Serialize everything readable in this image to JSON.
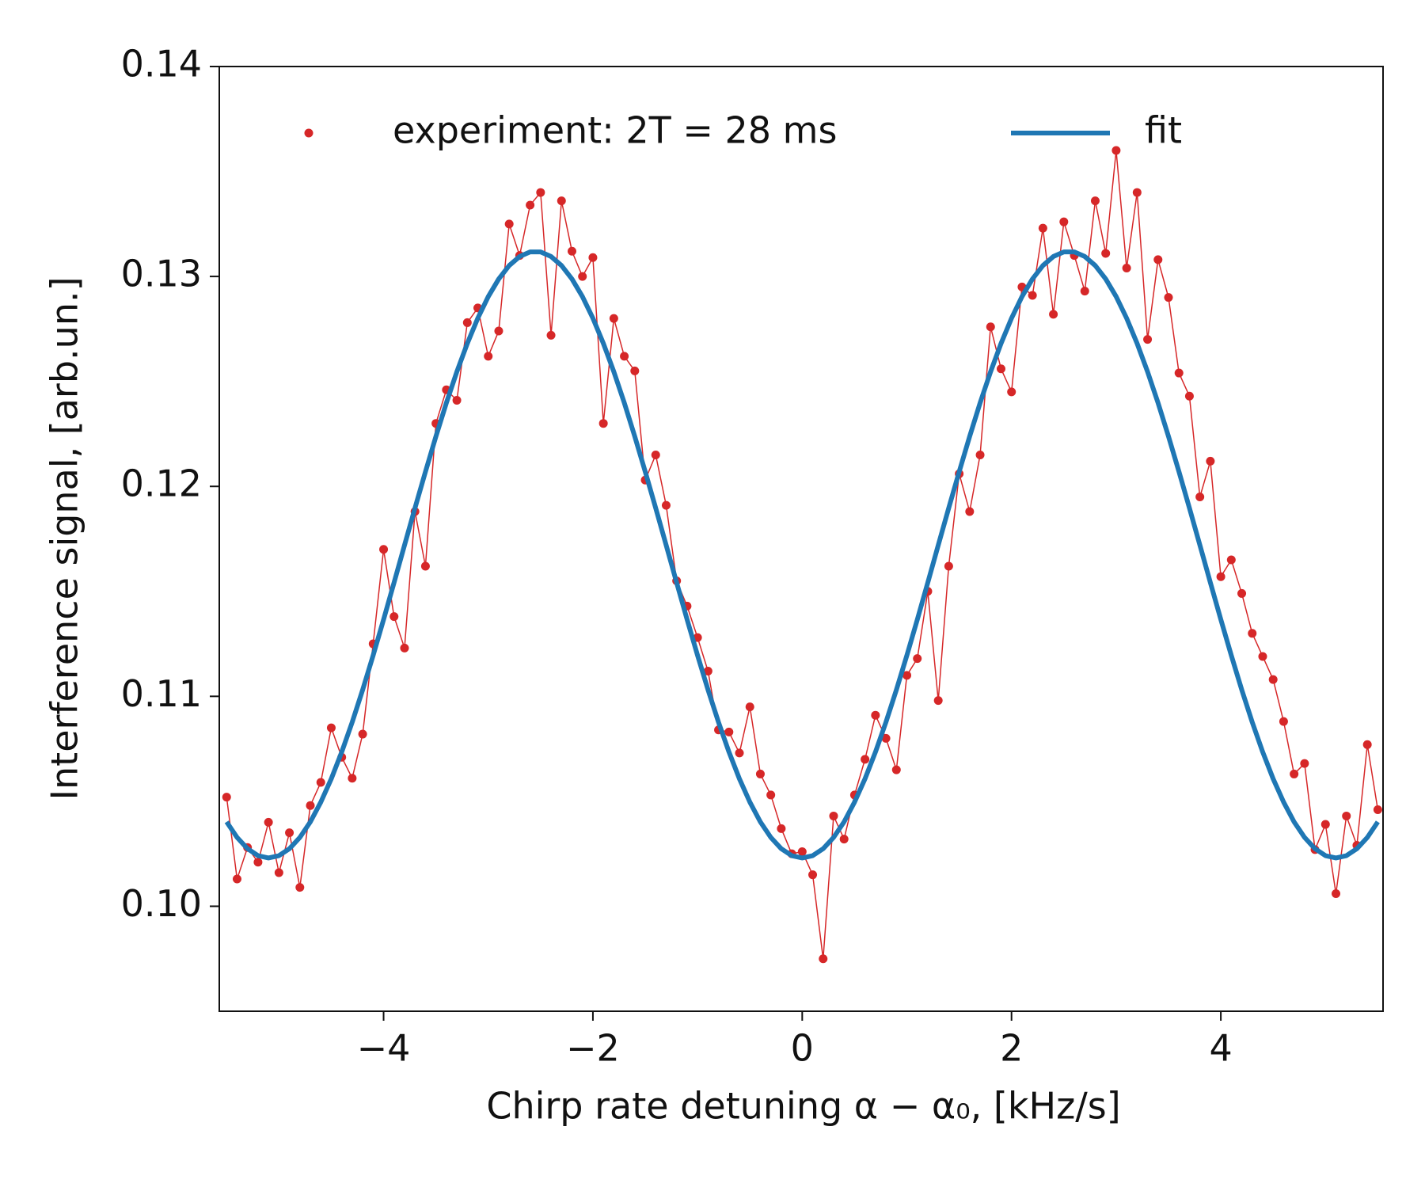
{
  "chart_data": {
    "type": "line",
    "xlabel": "Chirp rate detuning α − α₀, [kHz/s]",
    "ylabel": "Interference signal, [arb.un.]",
    "x": [
      -5.5,
      -5.4,
      -5.3,
      -5.2,
      -5.1,
      -5.0,
      -4.9,
      -4.8,
      -4.7,
      -4.6,
      -4.5,
      -4.4,
      -4.3,
      -4.2,
      -4.1,
      -4.0,
      -3.9,
      -3.8,
      -3.7,
      -3.6,
      -3.5,
      -3.4,
      -3.3,
      -3.2,
      -3.1,
      -3.0,
      -2.9,
      -2.8,
      -2.7,
      -2.6,
      -2.5,
      -2.4,
      -2.3,
      -2.2,
      -2.1,
      -2.0,
      -1.9,
      -1.8,
      -1.7,
      -1.6,
      -1.5,
      -1.4,
      -1.3,
      -1.2,
      -1.1,
      -1.0,
      -0.9,
      -0.8,
      -0.7,
      -0.6,
      -0.5,
      -0.4,
      -0.3,
      -0.2,
      -0.1,
      0.0,
      0.1,
      0.2,
      0.3,
      0.4,
      0.5,
      0.6,
      0.7,
      0.8,
      0.9,
      1.0,
      1.1,
      1.2,
      1.3,
      1.4,
      1.5,
      1.6,
      1.7,
      1.8,
      1.9,
      2.0,
      2.1,
      2.2,
      2.3,
      2.4,
      2.5,
      2.6,
      2.7,
      2.8,
      2.9,
      3.0,
      3.1,
      3.2,
      3.3,
      3.4,
      3.5,
      3.6,
      3.7,
      3.8,
      3.9,
      4.0,
      4.1,
      4.2,
      4.3,
      4.4,
      4.5,
      4.6,
      4.7,
      4.8,
      4.9,
      5.0,
      5.1,
      5.2,
      5.3,
      5.4,
      5.5
    ],
    "series": [
      {
        "name": "experiment: 2T = 28 ms",
        "color": "#d62728",
        "style": "markers-line",
        "values": [
          0.1052,
          0.1013,
          0.1028,
          0.1021,
          0.104,
          0.1016,
          0.1035,
          0.1009,
          0.1048,
          0.1059,
          0.1085,
          0.1071,
          0.1061,
          0.1082,
          0.1125,
          0.117,
          0.1138,
          0.1123,
          0.1188,
          0.1162,
          0.123,
          0.1246,
          0.1241,
          0.1278,
          0.1285,
          0.1262,
          0.1274,
          0.1325,
          0.131,
          0.1334,
          0.134,
          0.1272,
          0.1336,
          0.1312,
          0.13,
          0.1309,
          0.123,
          0.128,
          0.1262,
          0.1255,
          0.1203,
          0.1215,
          0.1191,
          0.1155,
          0.1143,
          0.1128,
          0.1112,
          0.1084,
          0.1083,
          0.1073,
          0.1095,
          0.1063,
          0.1053,
          0.1037,
          0.1025,
          0.1026,
          0.1015,
          0.0975,
          0.1043,
          0.1032,
          0.1053,
          0.107,
          0.1091,
          0.108,
          0.1065,
          0.111,
          0.1118,
          0.115,
          0.1098,
          0.1162,
          0.1206,
          0.1188,
          0.1215,
          0.1276,
          0.1256,
          0.1245,
          0.1295,
          0.1291,
          0.1323,
          0.1282,
          0.1326,
          0.131,
          0.1293,
          0.1336,
          0.1311,
          0.136,
          0.1304,
          0.134,
          0.127,
          0.1308,
          0.129,
          0.1254,
          0.1243,
          0.1195,
          0.1212,
          0.1157,
          0.1165,
          0.1149,
          0.113,
          0.1119,
          0.1108,
          0.1088,
          0.1063,
          0.1068,
          0.1027,
          0.1039,
          0.1006,
          0.1043,
          0.1029,
          0.1077,
          0.1046
        ]
      },
      {
        "name": "fit",
        "color": "#1f77b4",
        "style": "line",
        "values": [
          0.10402,
          0.10328,
          0.10274,
          0.10241,
          0.1023,
          0.10241,
          0.10274,
          0.10328,
          0.10402,
          0.10496,
          0.10607,
          0.10735,
          0.10877,
          0.11031,
          0.11195,
          0.11366,
          0.11542,
          0.1172,
          0.11897,
          0.1207,
          0.12238,
          0.12398,
          0.12546,
          0.12681,
          0.12801,
          0.12904,
          0.12988,
          0.13052,
          0.13095,
          0.13117,
          0.13117,
          0.13095,
          0.13052,
          0.12988,
          0.12904,
          0.12801,
          0.12681,
          0.12546,
          0.12398,
          0.12238,
          0.1207,
          0.11897,
          0.1172,
          0.11542,
          0.11366,
          0.11195,
          0.11031,
          0.10877,
          0.10735,
          0.10607,
          0.10496,
          0.10402,
          0.10328,
          0.10274,
          0.10241,
          0.1023,
          0.10241,
          0.10274,
          0.10328,
          0.10402,
          0.10496,
          0.10607,
          0.10735,
          0.10877,
          0.11031,
          0.11195,
          0.11366,
          0.11542,
          0.1172,
          0.11897,
          0.1207,
          0.12238,
          0.12398,
          0.12546,
          0.12681,
          0.12801,
          0.12904,
          0.12988,
          0.13052,
          0.13095,
          0.13117,
          0.13117,
          0.13095,
          0.13052,
          0.12988,
          0.12904,
          0.12801,
          0.12681,
          0.12546,
          0.12398,
          0.12238,
          0.1207,
          0.11897,
          0.1172,
          0.11542,
          0.11366,
          0.11195,
          0.11031,
          0.10877,
          0.10735,
          0.10607,
          0.10496,
          0.10402,
          0.10328,
          0.10274,
          0.10241,
          0.1023,
          0.10241,
          0.10274,
          0.10328,
          0.10402
        ]
      }
    ],
    "xlim": [
      -5.57,
      5.55
    ],
    "ylim": [
      0.095,
      0.14
    ],
    "xticks": [
      {
        "value": -4,
        "label": "−4"
      },
      {
        "value": -2,
        "label": "−2"
      },
      0,
      2,
      4
    ],
    "yticks": [
      {
        "value": 0.1,
        "label": "0.10"
      },
      0.11,
      0.12,
      0.13,
      0.14
    ],
    "grid": false,
    "legend": "upper center"
  }
}
